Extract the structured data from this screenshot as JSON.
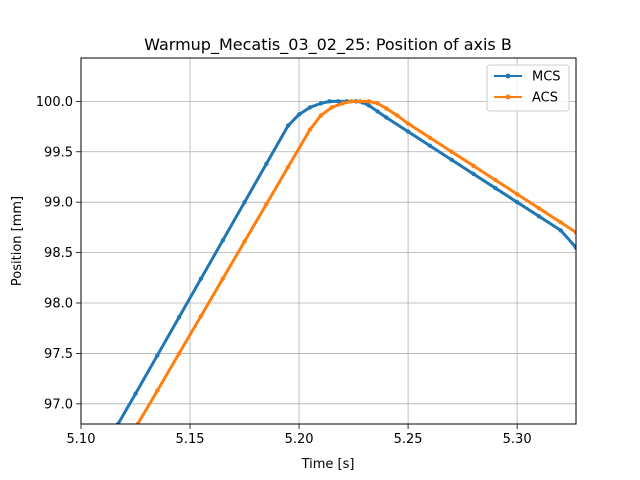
{
  "chart_data": {
    "type": "line",
    "title": "Warmup_Mecatis_03_02_25: Position of axis B",
    "xlabel": "Time [s]",
    "ylabel": "Position [mm]",
    "xlim": [
      5.1,
      5.327
    ],
    "ylim": [
      96.8,
      100.43
    ],
    "xticks": [
      5.1,
      5.15,
      5.2,
      5.25,
      5.3
    ],
    "xtick_labels": [
      "5.10",
      "5.15",
      "5.20",
      "5.25",
      "5.30"
    ],
    "yticks": [
      97.0,
      97.5,
      98.0,
      98.5,
      99.0,
      99.5,
      100.0
    ],
    "ytick_labels": [
      "97.0",
      "97.5",
      "98.0",
      "98.5",
      "99.0",
      "99.5",
      "100.0"
    ],
    "grid": true,
    "legend_position": "top-right",
    "series": [
      {
        "name": "MCS",
        "color": "#1f77b4",
        "x": [
          5.117,
          5.125,
          5.135,
          5.145,
          5.155,
          5.165,
          5.175,
          5.185,
          5.195,
          5.2,
          5.205,
          5.21,
          5.214,
          5.218,
          5.222,
          5.226,
          5.229,
          5.232,
          5.236,
          5.24,
          5.25,
          5.26,
          5.27,
          5.28,
          5.29,
          5.3,
          5.31,
          5.32,
          5.327
        ],
        "y": [
          96.8,
          97.1,
          97.48,
          97.86,
          98.24,
          98.62,
          99.0,
          99.38,
          99.76,
          99.87,
          99.94,
          99.98,
          100.0,
          100.0,
          100.0,
          100.0,
          99.99,
          99.96,
          99.9,
          99.84,
          99.7,
          99.56,
          99.42,
          99.28,
          99.14,
          99.0,
          98.86,
          98.72,
          98.55
        ]
      },
      {
        "name": "ACS",
        "color": "#ff7f0e",
        "x": [
          5.126,
          5.135,
          5.145,
          5.155,
          5.165,
          5.175,
          5.185,
          5.195,
          5.205,
          5.21,
          5.215,
          5.22,
          5.224,
          5.228,
          5.232,
          5.236,
          5.24,
          5.245,
          5.25,
          5.26,
          5.27,
          5.28,
          5.29,
          5.3,
          5.31,
          5.32,
          5.327
        ],
        "y": [
          96.8,
          97.13,
          97.5,
          97.87,
          98.24,
          98.61,
          98.98,
          99.35,
          99.72,
          99.86,
          99.94,
          99.98,
          100.0,
          100.0,
          100.0,
          99.98,
          99.93,
          99.86,
          99.78,
          99.64,
          99.5,
          99.36,
          99.22,
          99.08,
          98.94,
          98.8,
          98.7
        ]
      }
    ]
  }
}
